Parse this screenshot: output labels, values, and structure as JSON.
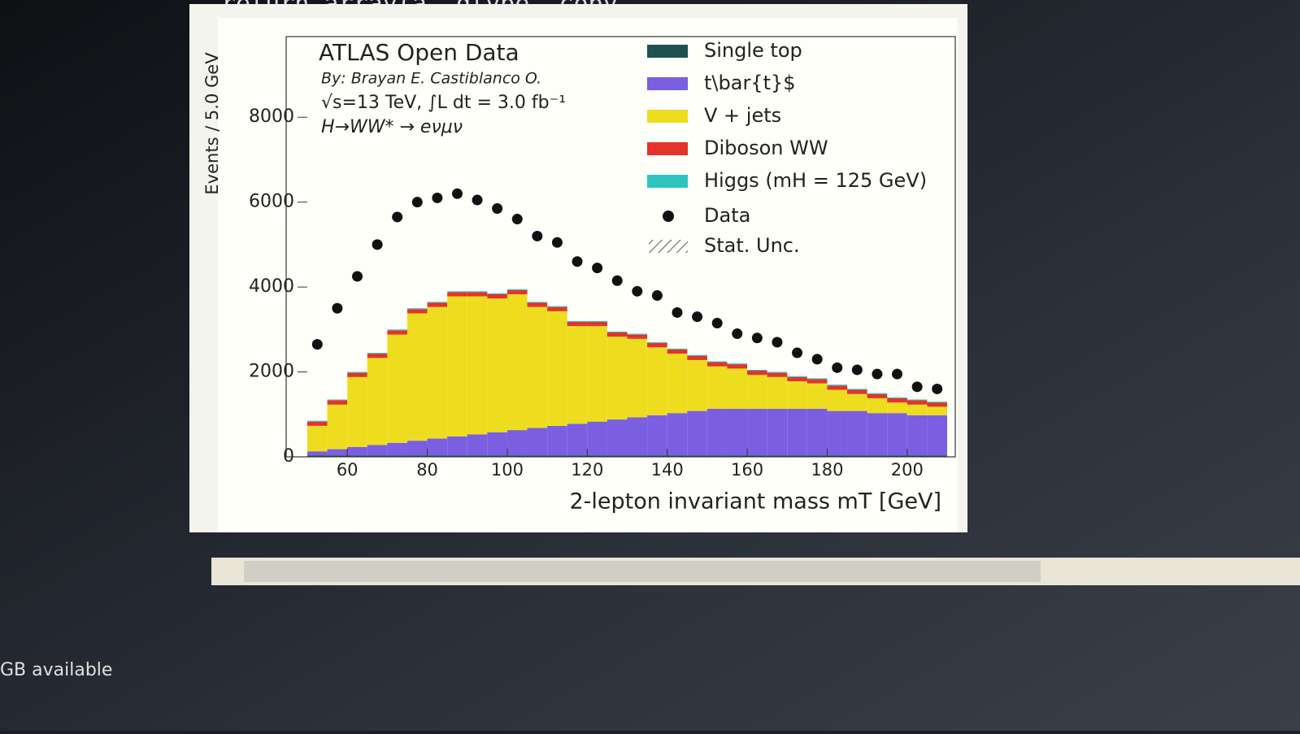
{
  "screen": {
    "code_line": "return array(a, dtype, copy",
    "storage": "GB available"
  },
  "chart_data": {
    "type": "stacked-histogram",
    "title": "ATLAS Open Data",
    "annotations": [
      "By: Brayan E. Castiblanco O.",
      "√s=13 TeV, ∫L dt = 3.0 fb⁻¹",
      "H→WW* → eνμν"
    ],
    "xlabel": "2-lepton invariant mass mT [GeV]",
    "ylabel": "Events / 5.0 GeV",
    "bins": [
      50,
      55,
      60,
      65,
      70,
      75,
      80,
      85,
      90,
      95,
      100,
      105,
      110,
      115,
      120,
      125,
      130,
      135,
      140,
      145,
      150,
      155,
      160,
      165,
      170,
      175,
      180,
      185,
      190,
      195,
      200,
      205,
      210
    ],
    "series": [
      {
        "name": "Single top",
        "color": "#1d5250",
        "values": [
          30,
          30,
          30,
          30,
          30,
          30,
          30,
          30,
          30,
          30,
          30,
          30,
          30,
          30,
          30,
          30,
          30,
          30,
          30,
          30,
          30,
          30,
          30,
          30,
          30,
          30,
          30,
          30,
          30,
          30,
          30,
          30
        ]
      },
      {
        "name": "t\\bar{t}$",
        "color": "#7a5fe0",
        "values": [
          100,
          150,
          200,
          250,
          300,
          350,
          400,
          450,
          500,
          550,
          600,
          650,
          700,
          750,
          800,
          850,
          900,
          950,
          1000,
          1050,
          1100,
          1100,
          1100,
          1100,
          1100,
          1100,
          1050,
          1050,
          1000,
          1000,
          950,
          950
        ]
      },
      {
        "name": "V + jets",
        "color": "#eedd1e",
        "values": [
          600,
          1050,
          1650,
          2050,
          2550,
          3000,
          3100,
          3300,
          3250,
          3150,
          3200,
          2850,
          2700,
          2300,
          2250,
          1950,
          1850,
          1600,
          1400,
          1200,
          1000,
          950,
          800,
          750,
          650,
          600,
          500,
          400,
          350,
          250,
          250,
          200
        ]
      },
      {
        "name": "Diboson WW",
        "color": "#e5322b",
        "values": [
          100,
          100,
          100,
          100,
          100,
          100,
          100,
          100,
          100,
          100,
          100,
          100,
          100,
          100,
          100,
          100,
          100,
          100,
          100,
          100,
          100,
          100,
          100,
          100,
          100,
          100,
          100,
          100,
          100,
          100,
          100,
          100
        ]
      },
      {
        "name": "Higgs (mH = 125 GeV)",
        "color": "#2fc4c0",
        "values": [
          20,
          20,
          20,
          20,
          20,
          20,
          20,
          20,
          20,
          20,
          20,
          20,
          20,
          20,
          20,
          20,
          20,
          20,
          20,
          20,
          20,
          20,
          20,
          20,
          20,
          20,
          20,
          20,
          20,
          20,
          20,
          20
        ]
      }
    ],
    "data": {
      "name": "Data",
      "color": "#111111",
      "values": [
        2650,
        3500,
        4250,
        5000,
        5650,
        6000,
        6100,
        6200,
        6050,
        5850,
        5600,
        5200,
        5050,
        4600,
        4450,
        4150,
        3900,
        3800,
        3400,
        3300,
        3150,
        2900,
        2800,
        2700,
        2450,
        2300,
        2100,
        2050,
        1950,
        1950,
        1650,
        1600
      ]
    },
    "stat_unc": {
      "name": "Stat. Unc."
    },
    "xlim": [
      50,
      210
    ],
    "ylim": [
      0,
      9900
    ],
    "xticks": [
      60,
      80,
      100,
      120,
      140,
      160,
      180,
      200
    ],
    "yticks": [
      0,
      2000,
      4000,
      6000,
      8000
    ],
    "legend": "upper right"
  }
}
